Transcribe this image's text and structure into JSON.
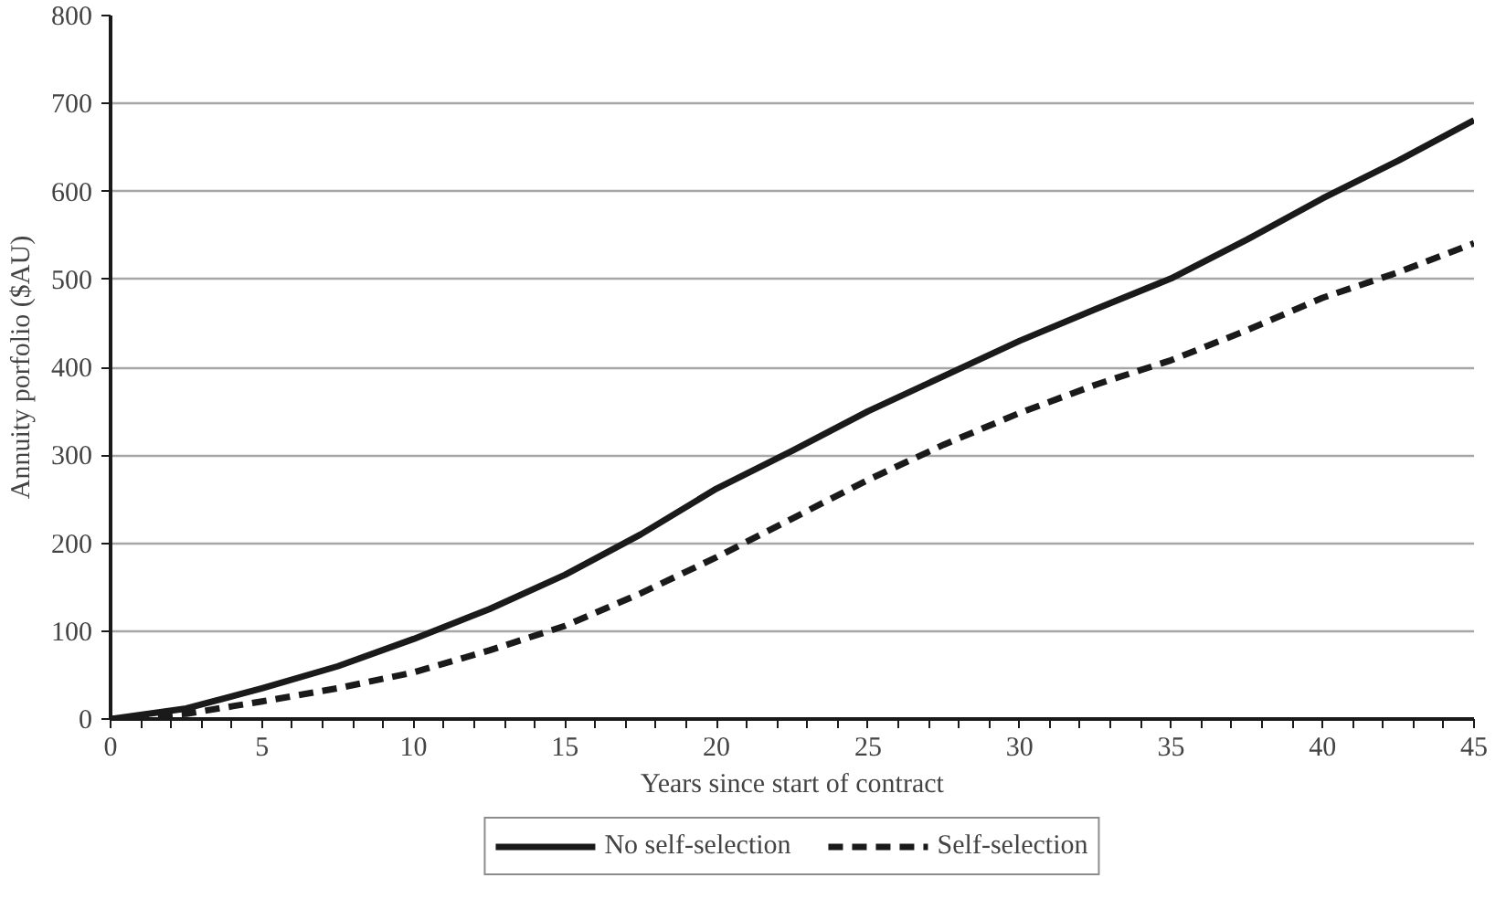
{
  "chart_data": {
    "type": "line",
    "xlabel": "Years since start of contract",
    "ylabel": "Annuity porfolio ($AU)",
    "x": [
      0,
      2.5,
      5,
      7.5,
      10,
      12.5,
      15,
      17.5,
      20,
      22.5,
      25,
      27.5,
      30,
      32.5,
      35,
      37.5,
      40,
      42.5,
      45
    ],
    "series": [
      {
        "name": "No self-selection",
        "color": "#1a1a1a",
        "line_style": "solid",
        "values": [
          0,
          12,
          35,
          60,
          91,
          125,
          164,
          210,
          262,
          305,
          350,
          390,
          430,
          466,
          501,
          545,
          592,
          635,
          681
        ]
      },
      {
        "name": "Self-selection",
        "color": "#1a1a1a",
        "line_style": "dashed",
        "values": [
          0,
          6,
          20,
          35,
          53,
          78,
          106,
          143,
          184,
          228,
          272,
          312,
          348,
          380,
          408,
          442,
          479,
          508,
          541
        ]
      }
    ],
    "xlim": [
      0,
      45
    ],
    "ylim": [
      0,
      800
    ],
    "xticks": [
      0,
      {
        "value": 1,
        "label": null
      },
      {
        "value": 2,
        "label": null
      },
      {
        "value": 3,
        "label": null
      },
      {
        "value": 4,
        "label": null
      },
      5,
      {
        "value": 6,
        "label": null
      },
      {
        "value": 7,
        "label": null
      },
      {
        "value": 8,
        "label": null
      },
      {
        "value": 9,
        "label": null
      },
      10,
      {
        "value": 11,
        "label": null
      },
      {
        "value": 12,
        "label": null
      },
      {
        "value": 13,
        "label": null
      },
      {
        "value": 14,
        "label": null
      },
      15,
      {
        "value": 16,
        "label": null
      },
      {
        "value": 17,
        "label": null
      },
      {
        "value": 18,
        "label": null
      },
      {
        "value": 19,
        "label": null
      },
      20,
      {
        "value": 21,
        "label": null
      },
      {
        "value": 22,
        "label": null
      },
      {
        "value": 23,
        "label": null
      },
      {
        "value": 24,
        "label": null
      },
      25,
      {
        "value": 26,
        "label": null
      },
      {
        "value": 27,
        "label": null
      },
      {
        "value": 28,
        "label": null
      },
      {
        "value": 29,
        "label": null
      },
      30,
      {
        "value": 31,
        "label": null
      },
      {
        "value": 32,
        "label": null
      },
      {
        "value": 33,
        "label": null
      },
      {
        "value": 34,
        "label": null
      },
      35,
      {
        "value": 36,
        "label": null
      },
      {
        "value": 37,
        "label": null
      },
      {
        "value": 38,
        "label": null
      },
      {
        "value": 39,
        "label": null
      },
      40,
      {
        "value": 41,
        "label": null
      },
      {
        "value": 42,
        "label": null
      },
      {
        "value": 43,
        "label": null
      },
      {
        "value": 44,
        "label": null
      },
      45
    ],
    "yticks": [
      0,
      100,
      200,
      300,
      400,
      500,
      600,
      700,
      800
    ],
    "grid": "y",
    "legend": "bottom",
    "marker": "none"
  }
}
